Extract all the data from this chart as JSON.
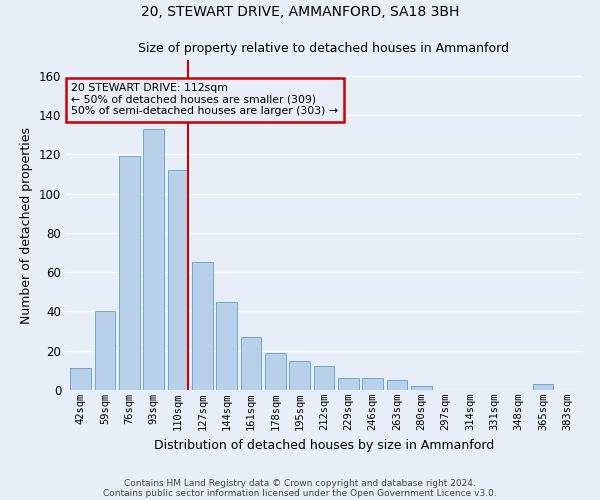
{
  "title1": "20, STEWART DRIVE, AMMANFORD, SA18 3BH",
  "title2": "Size of property relative to detached houses in Ammanford",
  "xlabel": "Distribution of detached houses by size in Ammanford",
  "ylabel": "Number of detached properties",
  "categories": [
    "42sqm",
    "59sqm",
    "76sqm",
    "93sqm",
    "110sqm",
    "127sqm",
    "144sqm",
    "161sqm",
    "178sqm",
    "195sqm",
    "212sqm",
    "229sqm",
    "246sqm",
    "263sqm",
    "280sqm",
    "297sqm",
    "314sqm",
    "331sqm",
    "348sqm",
    "365sqm",
    "383sqm"
  ],
  "values": [
    11,
    40,
    119,
    133,
    112,
    65,
    45,
    27,
    19,
    15,
    12,
    6,
    6,
    5,
    2,
    0,
    0,
    0,
    0,
    3,
    0
  ],
  "bar_color": "#b8d0ea",
  "bar_edge_color": "#6aaad4",
  "bg_color": "#e8eef8",
  "grid_color": "#ffffff",
  "annotation_line1": "20 STEWART DRIVE: 112sqm",
  "annotation_line2": "← 50% of detached houses are smaller (309)",
  "annotation_line3": "50% of semi-detached houses are larger (303) →",
  "vline_color": "#cc0000",
  "annotation_box_color": "#cc0000",
  "ylim": [
    0,
    168
  ],
  "yticks": [
    0,
    20,
    40,
    60,
    80,
    100,
    120,
    140,
    160
  ],
  "footer1": "Contains HM Land Registry data © Crown copyright and database right 2024.",
  "footer2": "Contains public sector information licensed under the Open Government Licence v3.0."
}
